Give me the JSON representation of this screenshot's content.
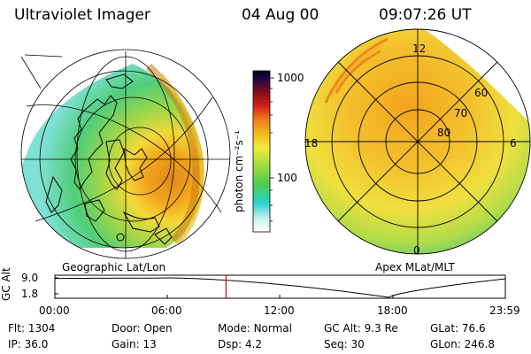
{
  "header": {
    "instrument": "Ultraviolet Imager",
    "date": "04 Aug 00",
    "time": "09:07:26 UT"
  },
  "left_panel": {
    "caption": "Geographic Lat/Lon"
  },
  "right_panel": {
    "caption": "Apex MLat/MLT",
    "mlt_labels": {
      "top": "12",
      "left": "18",
      "right": "6",
      "bottom": "0"
    },
    "lat_labels": [
      "60",
      "70",
      "80"
    ]
  },
  "colorbar": {
    "unit_label": "photon cm⁻²s⁻¹",
    "tick_labels": [
      "1000",
      "100"
    ]
  },
  "altitude_plot": {
    "ylabel": "GC Alt",
    "ytick_labels": [
      "9.0",
      "1.8"
    ],
    "xtick_labels": [
      "00:00",
      "06:00",
      "12:00",
      "18:00",
      "23:59"
    ],
    "marker_time_hours": 9.12,
    "marker_color": "#cc0000"
  },
  "info_rows": [
    [
      {
        "key": "Flt:",
        "value": "1304"
      },
      {
        "key": "Door:",
        "value": "Open"
      },
      {
        "key": "Mode:",
        "value": "Normal"
      },
      {
        "key": "GC Alt:",
        "value": "9.3 Re"
      },
      {
        "key": "GLat:",
        "value": "76.6"
      }
    ],
    [
      {
        "key": "IP:",
        "value": "36.0"
      },
      {
        "key": "Gain:",
        "value": "13"
      },
      {
        "key": "Dsp:",
        "value": "4.2"
      },
      {
        "key": "Seq:",
        "value": "30"
      },
      {
        "key": "GLon:",
        "value": "246.8"
      }
    ]
  ],
  "colors": {
    "accent_orange": "#f39a12",
    "accent_yellow": "#f2e23a",
    "accent_green": "#4cc84a",
    "accent_cyan": "#35d6c8"
  }
}
